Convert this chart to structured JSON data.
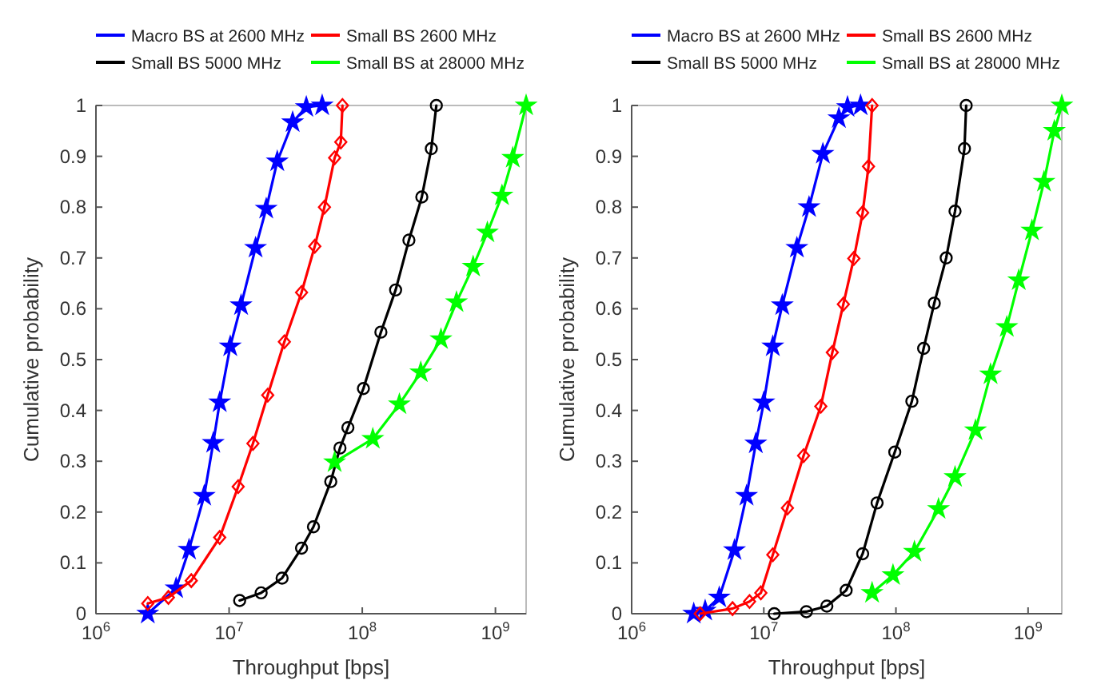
{
  "chart_data": [
    {
      "type": "line",
      "xlabel": "Throughput [bps]",
      "ylabel": "Cumulative probability",
      "log": "x",
      "legend": "top",
      "line_style": "solid",
      "xlim": [
        1000000,
        1700000000
      ],
      "xticks": [
        {
          "value": 1000000,
          "label": "10$^{6}$"
        },
        {
          "value": 10000000,
          "label": "10$^{7}$"
        },
        {
          "value": 100000000,
          "label": "10$^{8}$"
        },
        {
          "value": 1000000000,
          "label": "10$^{9}$"
        }
      ],
      "ylim": [
        0,
        1
      ],
      "yticks": [
        0,
        0.1,
        0.2,
        0.3,
        0.4,
        0.5,
        0.6,
        0.7,
        0.8,
        0.9,
        1
      ],
      "series": [
        {
          "name": "Macro BS at 2600 MHz",
          "color": "#0000ff",
          "marker": "star",
          "x": [
            2450000,
            4000000,
            5000000,
            6500000,
            7600000,
            8500000,
            10200000,
            12300000,
            15800000,
            19000000,
            23000000,
            30000000,
            38000000,
            50000000
          ],
          "values": [
            0,
            0.05,
            0.126,
            0.232,
            0.336,
            0.416,
            0.526,
            0.607,
            0.72,
            0.797,
            0.89,
            0.967,
            0.997,
            1
          ]
        },
        {
          "name": "Small BS 2600 MHz",
          "color": "#ff0000",
          "marker": "diamond",
          "x": [
            2450000,
            3500000,
            5200000,
            8500000,
            11700000,
            15100000,
            19500000,
            26000000,
            35000000,
            44000000,
            52000000,
            62000000,
            69000000,
            71000000
          ],
          "values": [
            0.02,
            0.032,
            0.065,
            0.15,
            0.25,
            0.335,
            0.43,
            0.535,
            0.632,
            0.723,
            0.8,
            0.897,
            0.928,
            1
          ]
        },
        {
          "name": "Small BS 5000 MHz",
          "color": "#000000",
          "marker": "circle",
          "x": [
            12000000,
            17400000,
            25000000,
            35000000,
            43000000,
            58000000,
            68000000,
            78000000,
            102000000,
            138000000,
            178000000,
            224000000,
            280000000,
            330000000,
            360000000
          ],
          "values": [
            0.026,
            0.041,
            0.07,
            0.129,
            0.171,
            0.26,
            0.326,
            0.366,
            0.443,
            0.554,
            0.637,
            0.735,
            0.82,
            0.915,
            1
          ]
        },
        {
          "name": "Small BS at 28000 MHz",
          "color": "#00ff00",
          "marker": "star",
          "x": [
            62000000,
            120000000,
            190000000,
            275000000,
            390000000,
            510000000,
            680000000,
            870000000,
            1120000000,
            1350000000,
            1700000000
          ],
          "values": [
            0.298,
            0.344,
            0.412,
            0.475,
            0.54,
            0.613,
            0.683,
            0.75,
            0.823,
            0.897,
            1
          ]
        }
      ]
    },
    {
      "type": "line",
      "xlabel": "Throughput [bps]",
      "ylabel": "Cumulative probability",
      "log": "x",
      "legend": "top",
      "line_style": "solid",
      "xlim": [
        1000000,
        1800000000
      ],
      "xticks": [
        {
          "value": 1000000,
          "label": "10$^{6}$"
        },
        {
          "value": 10000000,
          "label": "10$^{7}$"
        },
        {
          "value": 100000000,
          "label": "10$^{8}$"
        },
        {
          "value": 1000000000,
          "label": "10$^{9}$"
        }
      ],
      "ylim": [
        0,
        1
      ],
      "yticks": [
        0,
        0.1,
        0.2,
        0.3,
        0.4,
        0.5,
        0.6,
        0.7,
        0.8,
        0.9,
        1
      ],
      "series": [
        {
          "name": "Macro BS at 2600 MHz",
          "color": "#0000ff",
          "marker": "star",
          "x": [
            2950000,
            3600000,
            4600000,
            6000000,
            7400000,
            8700000,
            10000000,
            11700000,
            13800000,
            17800000,
            22000000,
            28000000,
            37000000,
            43000000,
            54000000
          ],
          "values": [
            0,
            0.006,
            0.032,
            0.125,
            0.232,
            0.335,
            0.416,
            0.526,
            0.607,
            0.72,
            0.8,
            0.905,
            0.975,
            0.997,
            1
          ]
        },
        {
          "name": "Small BS 2600 MHz",
          "color": "#ff0000",
          "marker": "diamond",
          "x": [
            3300000,
            5800000,
            7800000,
            9500000,
            11700000,
            15100000,
            20000000,
            27000000,
            33000000,
            40000000,
            48000000,
            56000000,
            62000000,
            66000000
          ],
          "values": [
            0,
            0.01,
            0.024,
            0.041,
            0.116,
            0.208,
            0.311,
            0.408,
            0.514,
            0.609,
            0.699,
            0.789,
            0.88,
            1
          ]
        },
        {
          "name": "Small BS 5000 MHz",
          "color": "#000000",
          "marker": "circle",
          "x": [
            12000000,
            21000000,
            30000000,
            42000000,
            56000000,
            72000000,
            98000000,
            132000000,
            162000000,
            195000000,
            240000000,
            280000000,
            330000000,
            340000000
          ],
          "values": [
            0,
            0.004,
            0.015,
            0.046,
            0.118,
            0.218,
            0.318,
            0.418,
            0.522,
            0.611,
            0.7,
            0.792,
            0.915,
            1
          ]
        },
        {
          "name": "Small BS at 28000 MHz",
          "color": "#00ff00",
          "marker": "star",
          "x": [
            66000000,
            95000000,
            138000000,
            210000000,
            280000000,
            400000000,
            520000000,
            690000000,
            850000000,
            1070000000,
            1320000000,
            1580000000,
            1800000000
          ],
          "values": [
            0.041,
            0.076,
            0.122,
            0.206,
            0.269,
            0.361,
            0.471,
            0.564,
            0.656,
            0.754,
            0.85,
            0.95,
            1
          ]
        }
      ]
    }
  ]
}
